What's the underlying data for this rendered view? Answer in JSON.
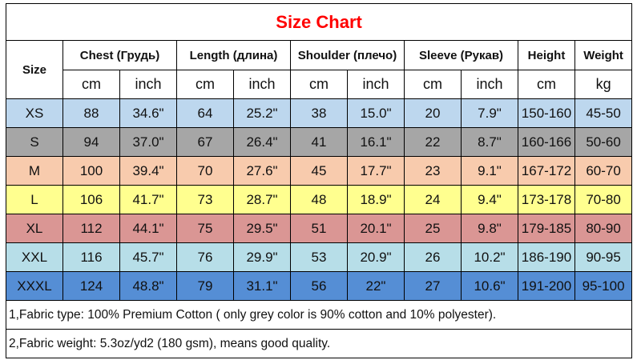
{
  "title": "Size Chart",
  "header": {
    "size": "Size",
    "groups": [
      "Chest  (Грудь)",
      "Length (длина)",
      "Shoulder (плечо)",
      "Sleeve (Рукав)",
      "Height",
      "Weight"
    ],
    "units": [
      "cm",
      "inch",
      "cm",
      "inch",
      "cm",
      "inch",
      "cm",
      "inch",
      "cm",
      "kg"
    ]
  },
  "rows": [
    {
      "size": "XS",
      "color": "#BDD7EE",
      "values": [
        "88",
        "34.6\"",
        "64",
        "25.2\"",
        "38",
        "15.0\"",
        "20",
        "7.9\"",
        "150-160",
        "45-50"
      ]
    },
    {
      "size": "S",
      "color": "#A6A6A6",
      "values": [
        "94",
        "37.0\"",
        "67",
        "26.4\"",
        "41",
        "16.1\"",
        "22",
        "8.7\"",
        "160-166",
        "50-60"
      ]
    },
    {
      "size": "M",
      "color": "#F8CBAD",
      "values": [
        "100",
        "39.4\"",
        "70",
        "27.6\"",
        "45",
        "17.7\"",
        "23",
        "9.1\"",
        "167-172",
        "60-70"
      ]
    },
    {
      "size": "L",
      "color": "#FFFF8F",
      "values": [
        "106",
        "41.7\"",
        "73",
        "28.7\"",
        "48",
        "18.9\"",
        "24",
        "9.4\"",
        "173-178",
        "70-80"
      ]
    },
    {
      "size": "XL",
      "color": "#DA9694",
      "values": [
        "112",
        "44.1\"",
        "75",
        "29.5\"",
        "51",
        "20.1\"",
        "25",
        "9.8\"",
        "179-185",
        "80-90"
      ]
    },
    {
      "size": "XXL",
      "color": "#B7DEE8",
      "values": [
        "116",
        "45.7\"",
        "76",
        "29.9\"",
        "53",
        "20.9\"",
        "26",
        "10.2\"",
        "186-190",
        "90-95"
      ]
    },
    {
      "size": "XXXL",
      "color": "#558ED5",
      "values": [
        "124",
        "48.8\"",
        "79",
        "31.1\"",
        "56",
        "22\"",
        "27",
        "10.6\"",
        "191-200",
        "95-100"
      ]
    }
  ],
  "notes": [
    "1,Fabric type: 100% Premium Cotton ( only grey color is 90% cotton and 10% polyester).",
    "2,Fabric weight: 5.3oz/yd2 (180 gsm), means good quality."
  ]
}
